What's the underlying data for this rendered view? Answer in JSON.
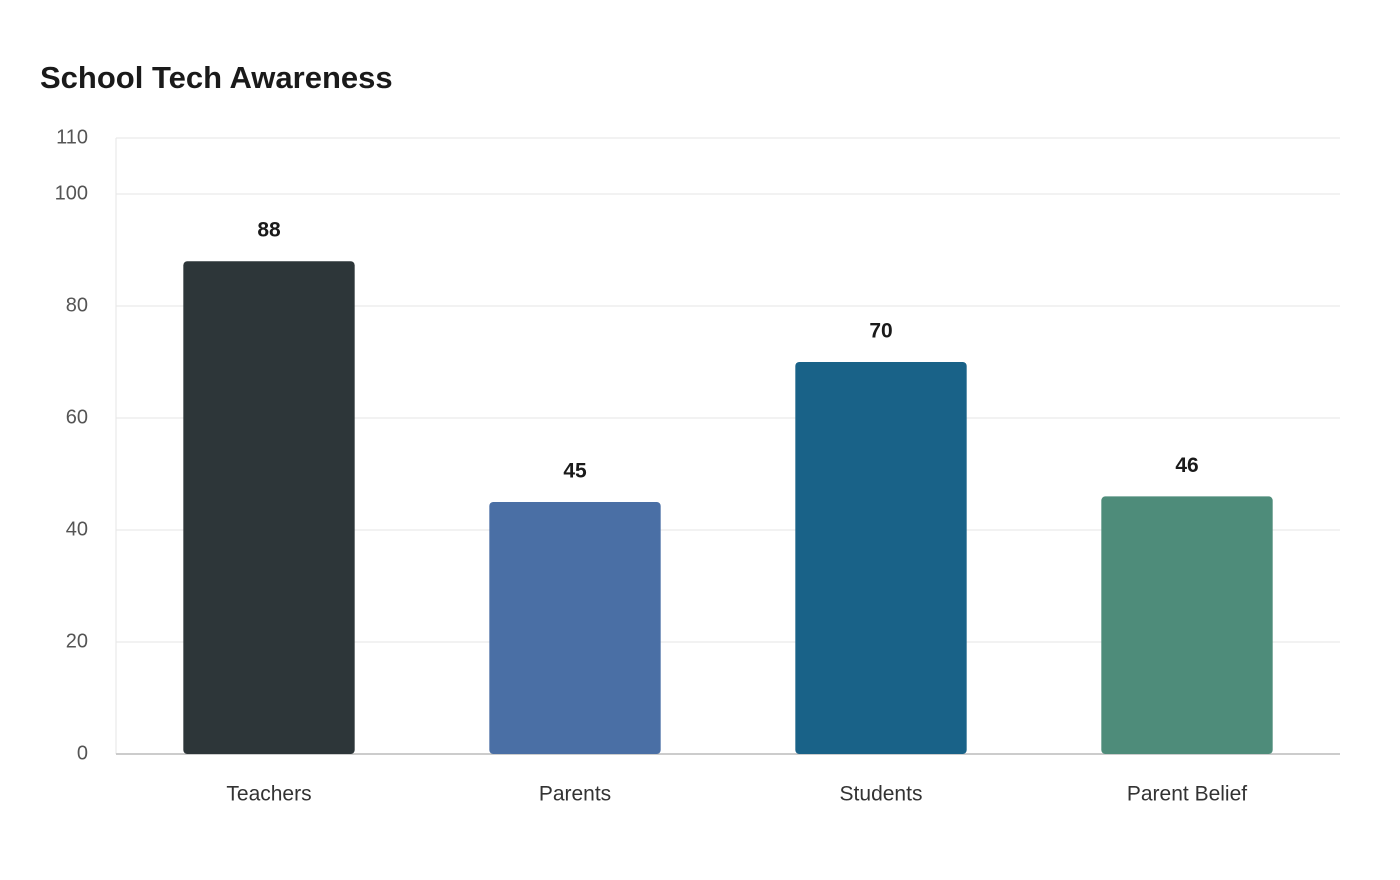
{
  "chart_data": {
    "type": "bar",
    "title": "School Tech Awareness",
    "categories": [
      "Teachers",
      "Parents",
      "Students",
      "Parent Belief"
    ],
    "values": [
      88,
      45,
      70,
      46
    ],
    "colors": [
      "#2d3639",
      "#4a6fa5",
      "#196288",
      "#4e8c7a"
    ],
    "ylim": [
      0,
      110
    ],
    "yticks": [
      0,
      20,
      40,
      60,
      80,
      100,
      110
    ],
    "grid": true
  }
}
